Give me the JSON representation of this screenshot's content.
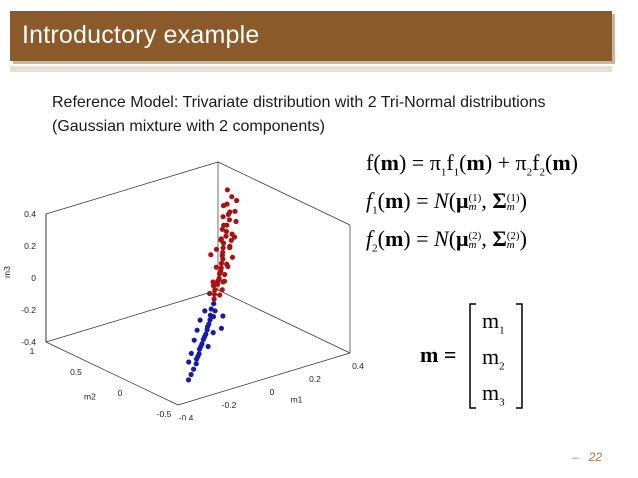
{
  "slide": {
    "title": "Introductory example",
    "body": "Reference Model: Trivariate distribution with 2 Tri-Normal distributions (Gaussian mixture with 2 components)",
    "page_number": "22",
    "page_prefix": "–"
  },
  "colors": {
    "title_bar": "#8a5a2b",
    "cluster_1": "#aa1111",
    "cluster_2": "#1a1aa8"
  },
  "equations": {
    "eq1": {
      "lhs": "f(m)",
      "rhs": "π1f1(m) + π2f2(m)"
    },
    "eq2": {
      "lhs": "f1(m)",
      "rhs": "N(μm(1), Σm(1))"
    },
    "eq3": {
      "lhs": "f2(m)",
      "rhs": "N(μm(2), Σm(2))"
    },
    "vector": {
      "lhs": "m",
      "components": [
        "m1",
        "m2",
        "m3"
      ]
    }
  },
  "chart_data": {
    "type": "scatter",
    "projection": "3d",
    "xlabel": "m1",
    "ylabel": "m2",
    "zlabel": "m3",
    "x_ticks": [
      "-0.4",
      "-0.2",
      "0",
      "0.2",
      "0.4"
    ],
    "y_ticks": [
      "-0.5",
      "0",
      "0.5",
      "1"
    ],
    "z_ticks": [
      "-0.4",
      "-0.2",
      "0",
      "0.2",
      "0.4"
    ],
    "xlim": [
      -0.4,
      0.4
    ],
    "ylim": [
      -0.5,
      1
    ],
    "zlim": [
      -0.4,
      0.4
    ],
    "grid": false,
    "series": [
      {
        "color": "#aa1111",
        "points": [
          [
            0.28,
            0.55,
            0.35
          ],
          [
            0.27,
            0.58,
            0.3
          ],
          [
            0.29,
            0.52,
            0.33
          ],
          [
            0.25,
            0.5,
            0.28
          ],
          [
            0.26,
            0.54,
            0.25
          ],
          [
            0.24,
            0.48,
            0.24
          ],
          [
            0.28,
            0.6,
            0.38
          ],
          [
            0.22,
            0.46,
            0.22
          ],
          [
            0.23,
            0.52,
            0.2
          ],
          [
            0.21,
            0.44,
            0.19
          ],
          [
            0.2,
            0.42,
            0.17
          ],
          [
            0.19,
            0.45,
            0.15
          ],
          [
            0.22,
            0.4,
            0.18
          ],
          [
            0.18,
            0.4,
            0.14
          ],
          [
            0.17,
            0.38,
            0.12
          ],
          [
            0.2,
            0.36,
            0.16
          ],
          [
            0.16,
            0.36,
            0.1
          ],
          [
            0.15,
            0.34,
            0.09
          ],
          [
            0.18,
            0.33,
            0.13
          ],
          [
            0.14,
            0.31,
            0.08
          ],
          [
            0.13,
            0.3,
            0.06
          ],
          [
            0.15,
            0.29,
            0.05
          ],
          [
            0.12,
            0.28,
            0.04
          ],
          [
            0.11,
            0.26,
            0.03
          ],
          [
            0.1,
            0.25,
            0.02
          ],
          [
            0.12,
            0.24,
            0.01
          ],
          [
            0.09,
            0.23,
            0.0
          ],
          [
            0.08,
            0.22,
            -0.01
          ],
          [
            0.1,
            0.21,
            -0.02
          ],
          [
            0.07,
            0.2,
            -0.02
          ],
          [
            0.06,
            0.22,
            -0.03
          ],
          [
            0.05,
            0.18,
            -0.04
          ],
          [
            0.08,
            0.17,
            -0.05
          ],
          [
            0.04,
            0.16,
            -0.06
          ],
          [
            0.06,
            0.15,
            -0.07
          ],
          [
            0.03,
            0.14,
            -0.08
          ],
          [
            0.26,
            0.6,
            0.22
          ],
          [
            0.24,
            0.56,
            0.16
          ],
          [
            0.21,
            0.5,
            0.12
          ],
          [
            0.19,
            0.3,
            0.2
          ],
          [
            0.27,
            0.62,
            0.28
          ],
          [
            0.18,
            0.48,
            0.08
          ],
          [
            0.16,
            0.28,
            0.16
          ],
          [
            0.13,
            0.36,
            0.02
          ],
          [
            0.11,
            0.18,
            0.08
          ],
          [
            0.09,
            0.3,
            -0.04
          ],
          [
            0.23,
            0.38,
            0.26
          ],
          [
            0.14,
            0.2,
            0.12
          ],
          [
            0.25,
            0.44,
            0.3
          ],
          [
            0.07,
            0.12,
            0.02
          ],
          [
            0.17,
            0.52,
            0.04
          ],
          [
            0.05,
            0.24,
            -0.08
          ]
        ]
      },
      {
        "color": "#1a1aa8",
        "points": [
          [
            0.02,
            0.12,
            -0.1
          ],
          [
            0.0,
            0.1,
            -0.12
          ],
          [
            0.01,
            0.08,
            -0.13
          ],
          [
            -0.02,
            0.06,
            -0.14
          ],
          [
            -0.01,
            0.05,
            -0.15
          ],
          [
            -0.03,
            0.04,
            -0.16
          ],
          [
            -0.04,
            0.03,
            -0.18
          ],
          [
            -0.05,
            0.02,
            -0.19
          ],
          [
            -0.06,
            0.0,
            -0.2
          ],
          [
            -0.07,
            -0.01,
            -0.22
          ],
          [
            -0.08,
            -0.02,
            -0.23
          ],
          [
            -0.09,
            -0.03,
            -0.24
          ],
          [
            -0.1,
            -0.04,
            -0.26
          ],
          [
            -0.11,
            -0.05,
            -0.27
          ],
          [
            -0.12,
            -0.06,
            -0.28
          ],
          [
            -0.13,
            -0.08,
            -0.3
          ],
          [
            -0.14,
            -0.09,
            -0.31
          ],
          [
            -0.15,
            -0.1,
            -0.32
          ],
          [
            -0.16,
            -0.12,
            -0.34
          ],
          [
            -0.18,
            -0.14,
            -0.36
          ],
          [
            -0.2,
            -0.16,
            -0.38
          ],
          [
            -0.22,
            -0.18,
            -0.4
          ],
          [
            -0.03,
            0.1,
            -0.12
          ],
          [
            -0.06,
            0.08,
            -0.16
          ],
          [
            -0.09,
            0.04,
            -0.2
          ],
          [
            -0.12,
            0.0,
            -0.24
          ],
          [
            -0.08,
            -0.06,
            -0.28
          ],
          [
            -0.04,
            -0.02,
            -0.22
          ],
          [
            -0.15,
            -0.04,
            -0.3
          ],
          [
            0.03,
            0.04,
            -0.16
          ],
          [
            -0.01,
            -0.04,
            -0.2
          ],
          [
            -0.17,
            -0.06,
            -0.34
          ]
        ]
      }
    ]
  }
}
